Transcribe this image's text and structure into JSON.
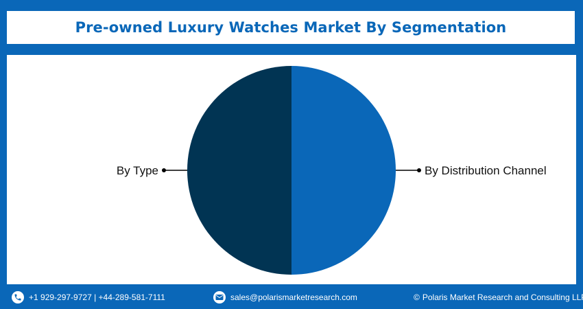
{
  "title": "Pre-owned Luxury Watches Market By Segmentation",
  "chart_data": {
    "type": "pie",
    "categories": [
      "By Type",
      "By Distribution Channel"
    ],
    "values": [
      50,
      50
    ],
    "colors": [
      "#013453",
      "#0a67b8"
    ],
    "legend": "none"
  },
  "footer": {
    "phone_icon": "phone-icon",
    "phone": "+1 929-297-9727 | +44-289-581-7111",
    "email_icon": "email-icon",
    "email": "sales@polarismarketresearch.com",
    "copyright_symbol": "©",
    "copyright": "Polaris Market Research and Consulting LLP"
  },
  "colors": {
    "frame": "#0a67b8",
    "panel": "#ffffff",
    "title": "#0a67b8"
  }
}
